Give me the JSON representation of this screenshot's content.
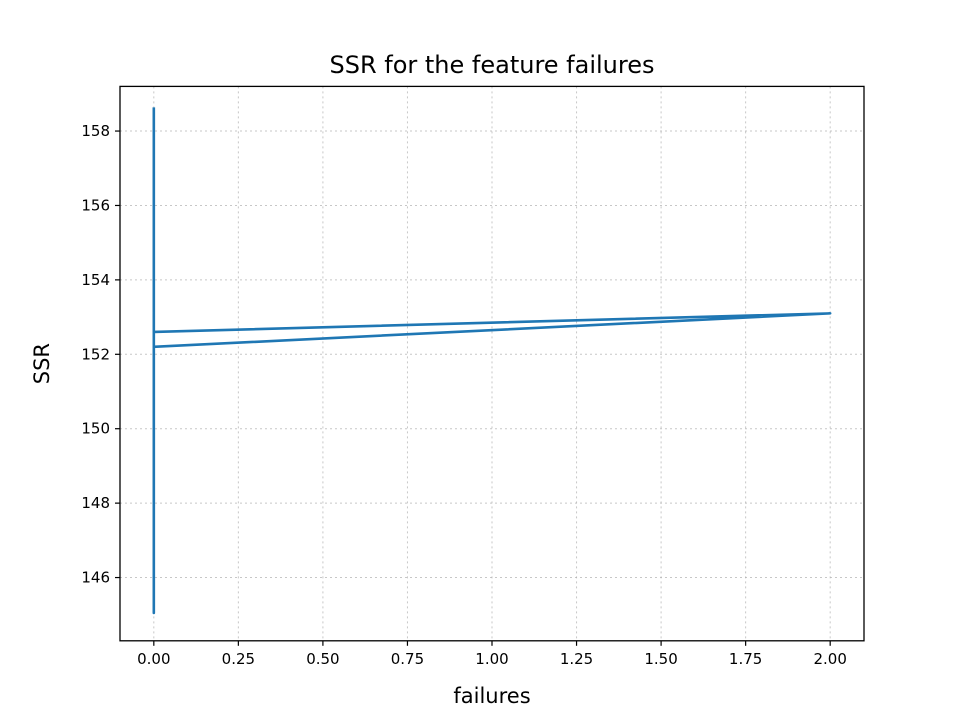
{
  "chart_data": {
    "type": "line",
    "title": "SSR for the feature failures",
    "xlabel": "failures",
    "ylabel": "SSR",
    "xlim": [
      -0.1,
      2.1
    ],
    "ylim": [
      144.3,
      159.2
    ],
    "grid": true,
    "x_ticks": [
      0.0,
      0.25,
      0.5,
      0.75,
      1.0,
      1.25,
      1.5,
      1.75,
      2.0
    ],
    "x_tick_labels": [
      "0.00",
      "0.25",
      "0.50",
      "0.75",
      "1.00",
      "1.25",
      "1.50",
      "1.75",
      "2.00"
    ],
    "y_ticks": [
      146,
      148,
      150,
      152,
      154,
      156,
      158
    ],
    "y_tick_labels": [
      "146",
      "148",
      "150",
      "152",
      "154",
      "156",
      "158"
    ],
    "series": [
      {
        "color": "#1f77b4",
        "x": [
          0,
          0,
          0,
          0,
          0,
          0,
          0,
          2,
          0,
          0,
          0,
          0,
          0,
          0
        ],
        "y": [
          158.6,
          155.2,
          152.6,
          153.1,
          150.1,
          148.5,
          152.2,
          153.1,
          152.6,
          154.0,
          149.5,
          146.5,
          145.05,
          148.6
        ]
      }
    ]
  }
}
